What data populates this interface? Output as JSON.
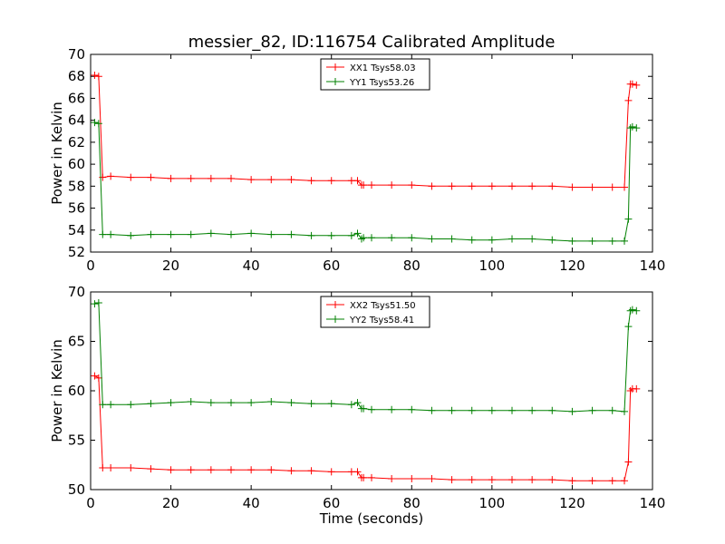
{
  "title": "messier_82, ID:116754 Calibrated Amplitude",
  "chart_data": [
    {
      "type": "line",
      "title": "messier_82, ID:116754 Calibrated Amplitude",
      "xlabel": "",
      "ylabel": "Power in Kelvin",
      "xlim": [
        0,
        140
      ],
      "ylim": [
        52,
        70
      ],
      "xticks": [
        "0",
        "20",
        "40",
        "60",
        "80",
        "100",
        "120",
        "140"
      ],
      "yticks": [
        "52",
        "54",
        "56",
        "58",
        "60",
        "62",
        "64",
        "66",
        "68",
        "70"
      ],
      "legend_position": "top-center",
      "grid": false,
      "marker": "+",
      "series": [
        {
          "name": "XX1 Tsys58.03",
          "color": "#ff0000",
          "x": [
            1,
            2,
            3,
            5,
            10,
            15,
            20,
            25,
            30,
            35,
            40,
            45,
            50,
            55,
            60,
            65,
            66.5,
            67.5,
            68,
            70,
            75,
            80,
            85,
            90,
            95,
            100,
            105,
            110,
            115,
            120,
            125,
            130,
            133,
            134,
            134.5,
            135,
            136
          ],
          "values": [
            68.1,
            68.0,
            58.8,
            58.9,
            58.8,
            58.8,
            58.7,
            58.7,
            58.7,
            58.7,
            58.6,
            58.6,
            58.6,
            58.5,
            58.5,
            58.5,
            58.5,
            58.1,
            58.1,
            58.1,
            58.1,
            58.1,
            58.0,
            58.0,
            58.0,
            58.0,
            58.0,
            58.0,
            58.0,
            57.9,
            57.9,
            57.9,
            57.9,
            65.8,
            67.3,
            67.3,
            67.2
          ]
        },
        {
          "name": "YY1 Tsys53.26",
          "color": "#008000",
          "x": [
            1,
            2,
            3,
            5,
            10,
            15,
            20,
            25,
            30,
            35,
            40,
            45,
            50,
            55,
            60,
            65,
            66.5,
            67.5,
            68,
            70,
            75,
            80,
            85,
            90,
            95,
            100,
            105,
            110,
            115,
            120,
            125,
            130,
            133,
            134,
            134.5,
            135,
            136
          ],
          "values": [
            63.8,
            63.7,
            53.6,
            53.6,
            53.5,
            53.6,
            53.6,
            53.6,
            53.7,
            53.6,
            53.7,
            53.6,
            53.6,
            53.5,
            53.5,
            53.5,
            53.7,
            53.2,
            53.3,
            53.3,
            53.3,
            53.3,
            53.2,
            53.2,
            53.1,
            53.1,
            53.2,
            53.2,
            53.1,
            53.0,
            53.0,
            53.0,
            53.0,
            55.0,
            63.3,
            63.4,
            63.3
          ]
        }
      ]
    },
    {
      "type": "line",
      "title": "",
      "xlabel": "Time (seconds)",
      "ylabel": "Power in Kelvin",
      "xlim": [
        0,
        140
      ],
      "ylim": [
        50,
        70
      ],
      "xticks": [
        "0",
        "20",
        "40",
        "60",
        "80",
        "100",
        "120",
        "140"
      ],
      "yticks": [
        "50",
        "55",
        "60",
        "65",
        "70"
      ],
      "legend_position": "top-center",
      "grid": false,
      "marker": "+",
      "series": [
        {
          "name": "XX2 Tsys51.50",
          "color": "#ff0000",
          "x": [
            1,
            2,
            3,
            5,
            10,
            15,
            20,
            25,
            30,
            35,
            40,
            45,
            50,
            55,
            60,
            65,
            66.5,
            67.5,
            68,
            70,
            75,
            80,
            85,
            90,
            95,
            100,
            105,
            110,
            115,
            120,
            125,
            130,
            133,
            134,
            134.5,
            135,
            136
          ],
          "values": [
            61.5,
            61.3,
            52.2,
            52.2,
            52.2,
            52.1,
            52.0,
            52.0,
            52.0,
            52.0,
            52.0,
            52.0,
            51.9,
            51.9,
            51.8,
            51.8,
            51.8,
            51.2,
            51.2,
            51.2,
            51.1,
            51.1,
            51.1,
            51.0,
            51.0,
            51.0,
            51.0,
            51.0,
            51.0,
            50.9,
            50.9,
            50.9,
            50.9,
            52.8,
            60.0,
            60.2,
            60.2
          ]
        },
        {
          "name": "YY2 Tsys58.41",
          "color": "#008000",
          "x": [
            1,
            2,
            3,
            5,
            10,
            15,
            20,
            25,
            30,
            35,
            40,
            45,
            50,
            55,
            60,
            65,
            66.5,
            67.5,
            68,
            70,
            75,
            80,
            85,
            90,
            95,
            100,
            105,
            110,
            115,
            120,
            125,
            130,
            133,
            134,
            134.5,
            135,
            136
          ],
          "values": [
            68.8,
            68.9,
            58.6,
            58.6,
            58.6,
            58.7,
            58.8,
            58.9,
            58.8,
            58.8,
            58.8,
            58.9,
            58.8,
            58.7,
            58.7,
            58.6,
            58.8,
            58.2,
            58.2,
            58.1,
            58.1,
            58.1,
            58.0,
            58.0,
            58.0,
            58.0,
            58.0,
            58.0,
            58.0,
            57.9,
            58.0,
            58.0,
            57.9,
            66.5,
            68.1,
            68.2,
            68.1
          ]
        }
      ]
    }
  ]
}
